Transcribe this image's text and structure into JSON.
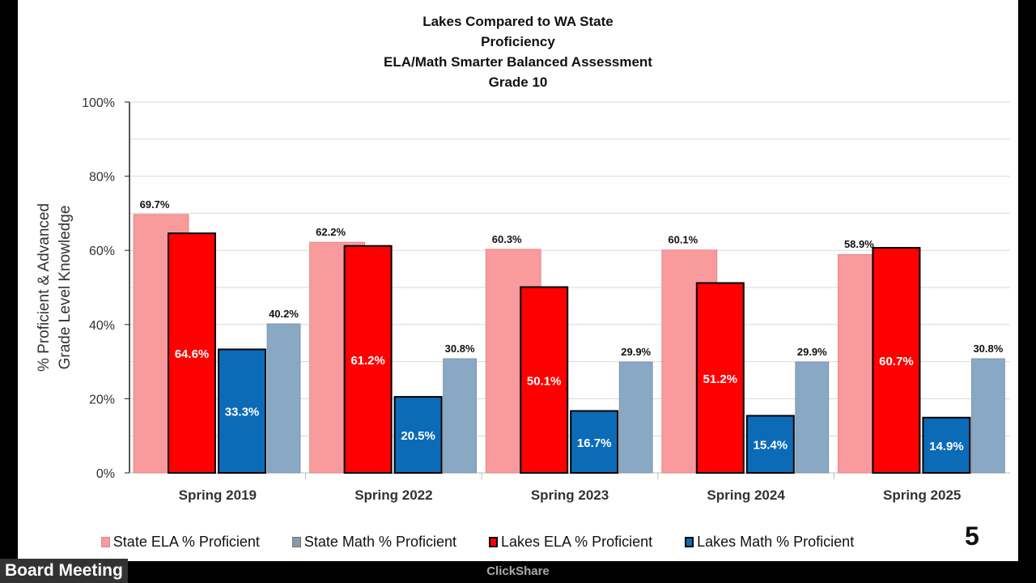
{
  "chart_data": {
    "type": "bar",
    "title": [
      "Lakes Compared to WA State",
      "Proficiency",
      "ELA/Math Smarter Balanced Assessment",
      "Grade 10"
    ],
    "ylabel": [
      "% Proficient & Advanced",
      "Grade Level Knowledge"
    ],
    "xlabel": "",
    "ylim": [
      0,
      100
    ],
    "yticks": [
      "0%",
      "20%",
      "40%",
      "60%",
      "80%",
      "100%"
    ],
    "grid": true,
    "legend_position": "bottom",
    "categories": [
      "Spring 2019",
      "Spring 2022",
      "Spring 2023",
      "Spring 2024",
      "Spring 2025"
    ],
    "series": [
      {
        "name": "State ELA % Proficient",
        "color": "#f99a9c",
        "values": [
          69.7,
          62.2,
          60.3,
          60.1,
          58.9
        ],
        "labels": [
          "69.7%",
          "62.2%",
          "60.3%",
          "60.1%",
          "58.9%"
        ]
      },
      {
        "name": "Lakes ELA % Proficient",
        "color": "#ff0000",
        "values": [
          64.6,
          61.2,
          50.1,
          51.2,
          60.7
        ],
        "labels": [
          "64.6%",
          "61.2%",
          "50.1%",
          "51.2%",
          "60.7%"
        ]
      },
      {
        "name": "Lakes Math % Proficient",
        "color": "#0b6bb7",
        "values": [
          33.3,
          20.5,
          16.7,
          15.4,
          14.9
        ],
        "labels": [
          "33.3%",
          "20.5%",
          "16.7%",
          "15.4%",
          "14.9%"
        ]
      },
      {
        "name": "State Math % Proficient",
        "color": "#88a8c4",
        "values": [
          40.2,
          30.8,
          29.9,
          29.9,
          30.8
        ],
        "labels": [
          "40.2%",
          "30.8%",
          "29.9%",
          "29.9%",
          "30.8%"
        ]
      }
    ],
    "legend_order": [
      0,
      3,
      1,
      2
    ]
  },
  "legend": [
    "State ELA % Proficient",
    "State Math % Proficient",
    "Lakes ELA % Proficient",
    "Lakes Math % Proficient"
  ],
  "slide_number": "5",
  "overlay": {
    "label": "Board Meeting",
    "source": "ClickShare"
  }
}
